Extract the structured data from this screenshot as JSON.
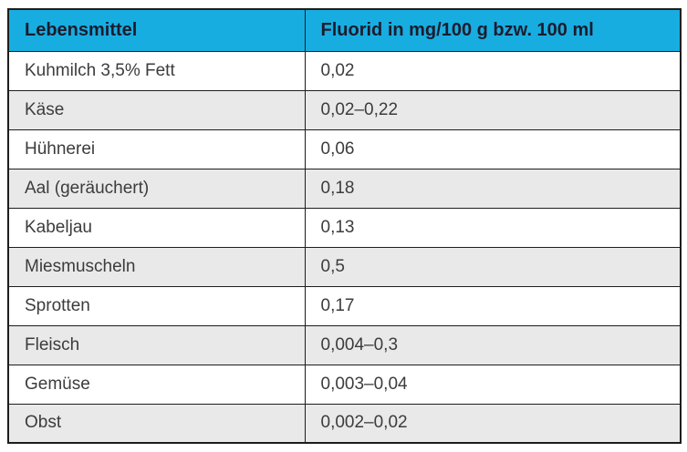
{
  "table": {
    "headers": {
      "food": "Lebensmittel",
      "value": "Fluorid in mg/100 g bzw. 100 ml"
    },
    "rows": [
      {
        "food": "Kuhmilch 3,5% Fett",
        "value": "0,02"
      },
      {
        "food": "Käse",
        "value": "0,02–0,22"
      },
      {
        "food": "Hühnerei",
        "value": "0,06"
      },
      {
        "food": "Aal (geräuchert)",
        "value": "0,18"
      },
      {
        "food": "Kabeljau",
        "value": "0,13"
      },
      {
        "food": "Miesmuscheln",
        "value": "0,5"
      },
      {
        "food": "Sprotten",
        "value": "0,17"
      },
      {
        "food": "Fleisch",
        "value": "0,004–0,3"
      },
      {
        "food": "Gemüse",
        "value": "0,003–0,04"
      },
      {
        "food": "Obst",
        "value": "0,002–0,02"
      }
    ],
    "colors": {
      "header_bg": "#18ade0",
      "row_alt_bg": "#e9e9ea",
      "border": "#1d1d1b",
      "header_text": "#1c1c2e",
      "body_text": "#3c3c3b"
    }
  }
}
